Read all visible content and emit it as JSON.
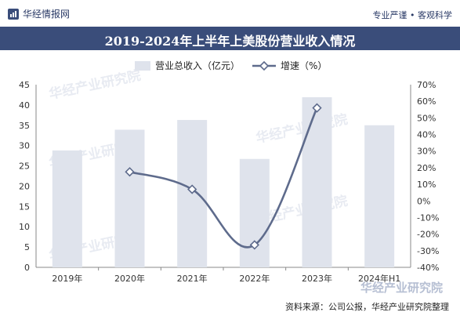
{
  "header": {
    "brand": "华经情报网",
    "tagline": "专业严谨 • 客观科学",
    "title": "2019-2024年上半年上美股份营业收入情况"
  },
  "watermark": "华经产业研究院",
  "source": "资料来源：公司公报，华经产业研究院整理",
  "colors": {
    "bar": "#dfe3ec",
    "line": "#5e6b8c",
    "title_bg": "#3a4d7a"
  },
  "chart_data": {
    "type": "bar",
    "title": "2019-2024年上半年上美股份营业收入情况",
    "categories": [
      "2019年",
      "2020年",
      "2021年",
      "2022年",
      "2023年",
      "2024年H1"
    ],
    "series": [
      {
        "name": "营业总收入（亿元）",
        "type": "bar",
        "axis": "left",
        "values": [
          28.8,
          33.9,
          36.3,
          26.7,
          41.9,
          35.0
        ]
      },
      {
        "name": "增速（%）",
        "type": "line",
        "axis": "right",
        "values": [
          null,
          17.5,
          7.0,
          -26.5,
          56.0,
          null
        ]
      }
    ],
    "y_left": {
      "min": 0,
      "max": 45,
      "step": 5,
      "ticks": [
        "0",
        "5",
        "10",
        "15",
        "20",
        "25",
        "30",
        "35",
        "40",
        "45"
      ]
    },
    "y_right": {
      "min": -40,
      "max": 70,
      "step": 10,
      "ticks": [
        "-40%",
        "-30%",
        "-20%",
        "-10%",
        "0%",
        "10%",
        "20%",
        "30%",
        "40%",
        "50%",
        "60%",
        "70%"
      ]
    },
    "legend": "top-center",
    "grid": false
  }
}
